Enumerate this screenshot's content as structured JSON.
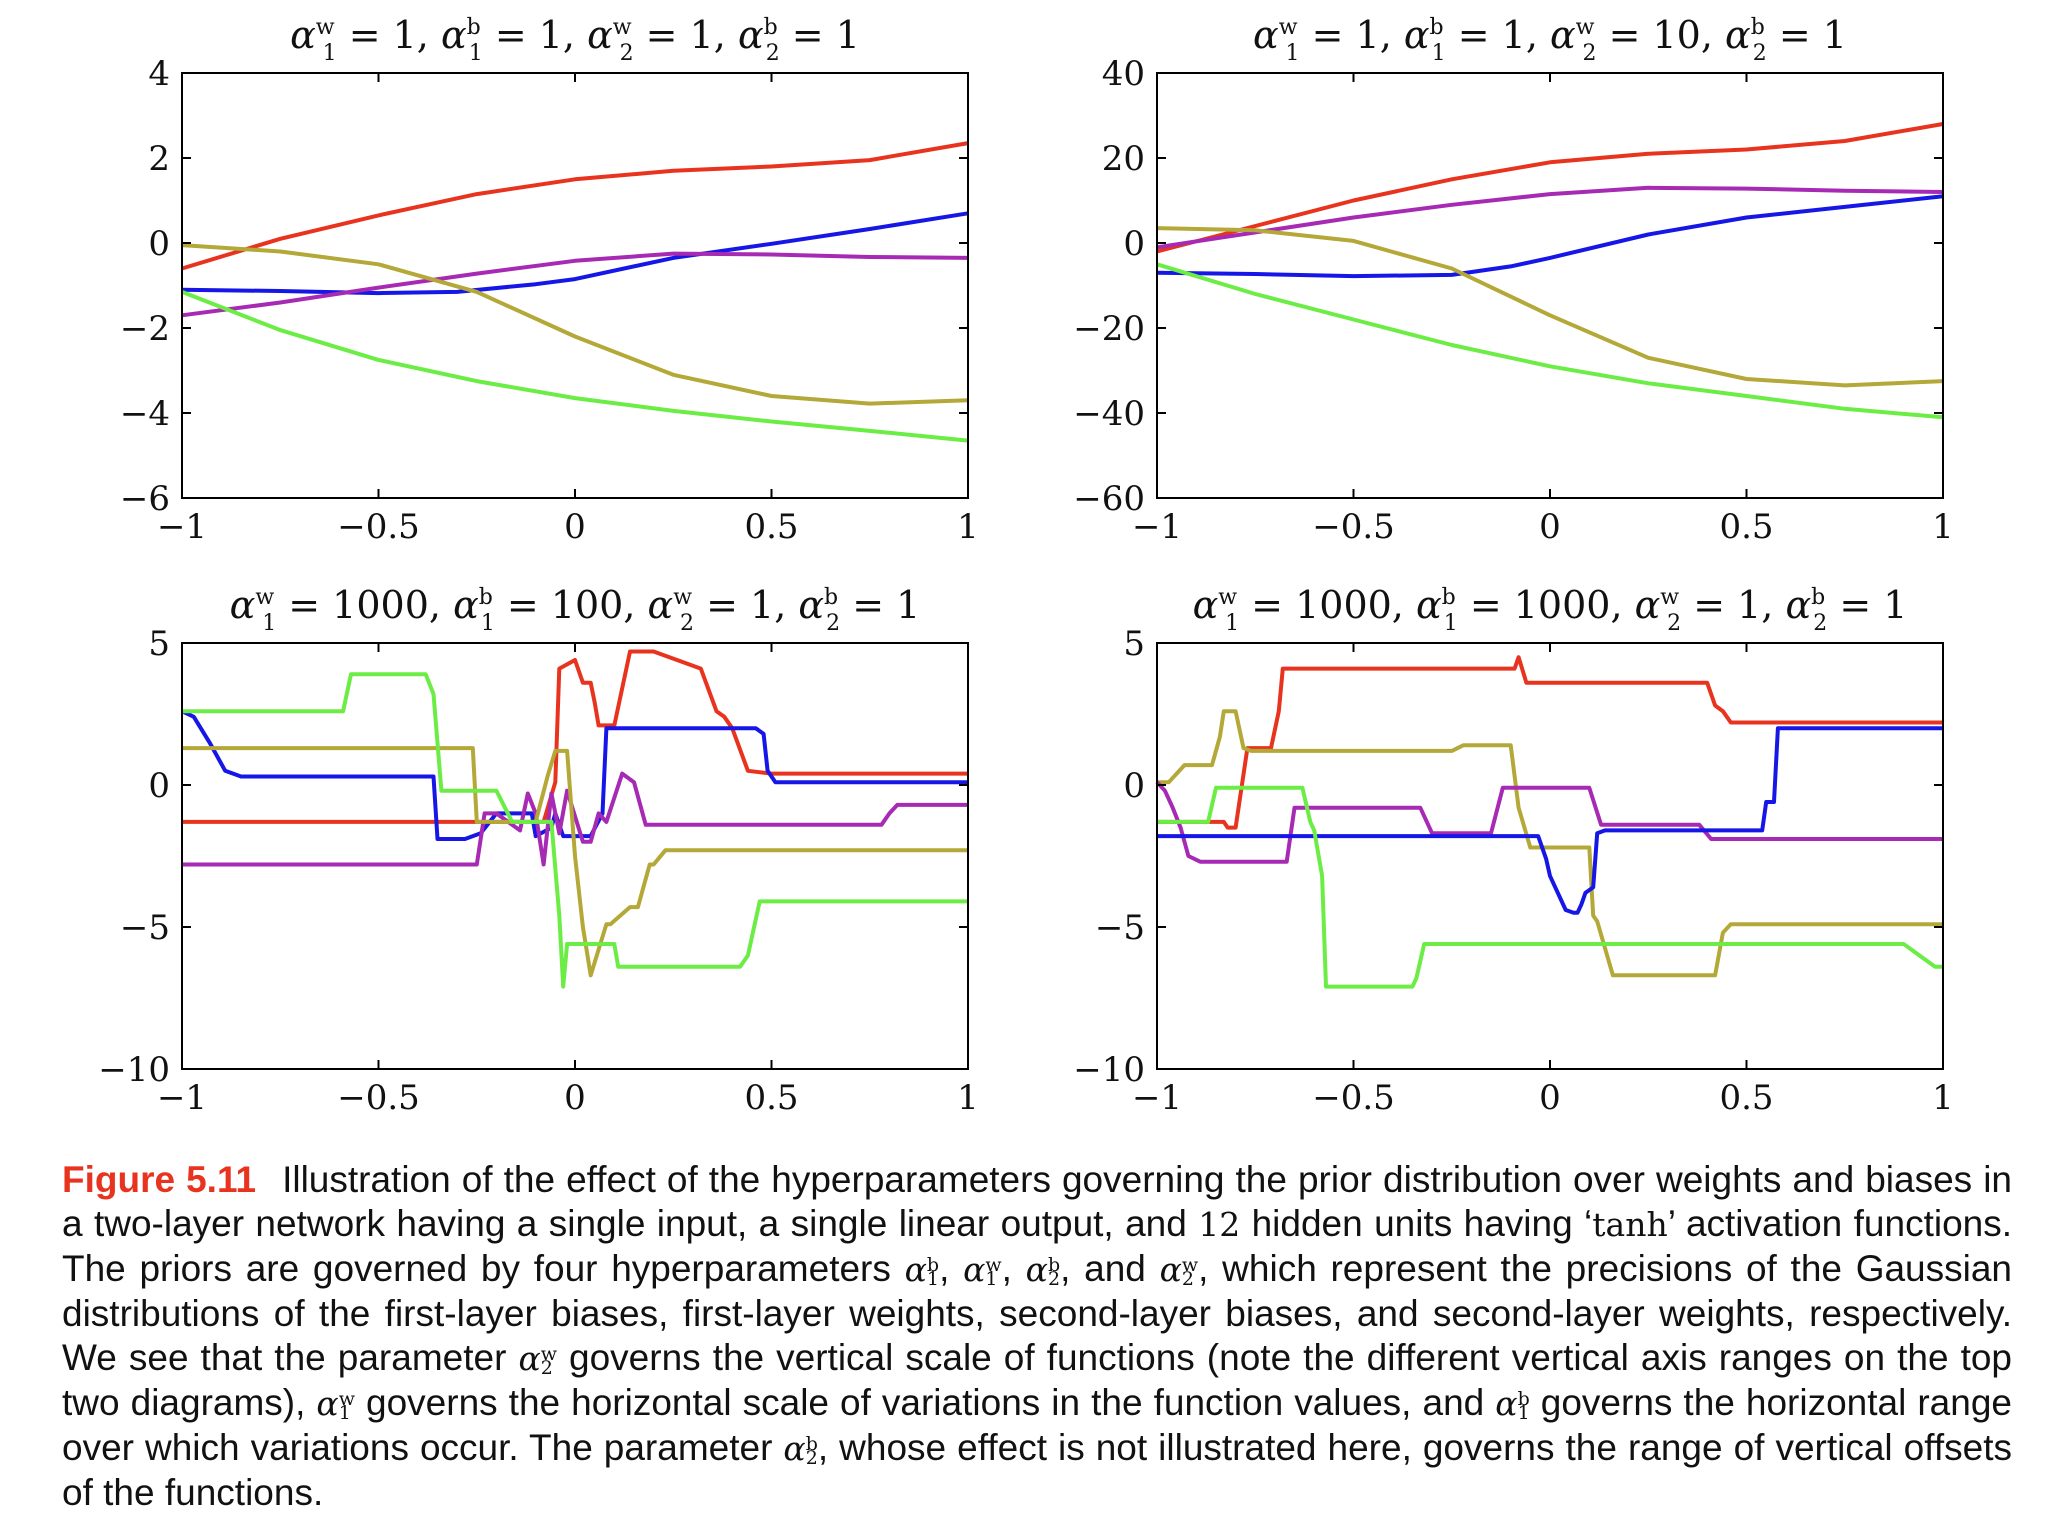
{
  "chart_data": [
    {
      "type": "line",
      "title": "α1w = 1, α1b = 1, α2w = 1, α2b = 1",
      "xlim": [
        -1,
        1
      ],
      "ylim": [
        -6,
        4
      ],
      "xticks": [
        -1,
        -0.5,
        0,
        0.5,
        1
      ],
      "xtick_labels": [
        "−1",
        "−0.5",
        "0",
        "0.5",
        "1"
      ],
      "yticks": [
        -6,
        -4,
        -2,
        0,
        2,
        4
      ],
      "ytick_labels": [
        "−6",
        "−4",
        "−2",
        "0",
        "2",
        "4"
      ],
      "grid": false,
      "series": [
        {
          "color": "#e8331f",
          "x": [
            -1,
            -0.75,
            -0.5,
            -0.25,
            0,
            0.25,
            0.5,
            0.75,
            1
          ],
          "y": [
            -0.6,
            0.1,
            0.65,
            1.15,
            1.5,
            1.7,
            1.8,
            1.95,
            2.35
          ]
        },
        {
          "color": "#1616e6",
          "x": [
            -1,
            -0.75,
            -0.5,
            -0.3,
            -0.1,
            0,
            0.25,
            0.5,
            0.75,
            1
          ],
          "y": [
            -1.1,
            -1.13,
            -1.18,
            -1.15,
            -0.97,
            -0.85,
            -0.35,
            -0.02,
            0.33,
            0.7
          ]
        },
        {
          "color": "#a62ab3",
          "x": [
            -1,
            -0.75,
            -0.5,
            -0.25,
            0,
            0.25,
            0.5,
            0.75,
            1
          ],
          "y": [
            -1.7,
            -1.4,
            -1.05,
            -0.72,
            -0.42,
            -0.25,
            -0.27,
            -0.33,
            -0.35
          ]
        },
        {
          "color": "#b3a838",
          "x": [
            -1,
            -0.75,
            -0.5,
            -0.25,
            0,
            0.25,
            0.5,
            0.75,
            1
          ],
          "y": [
            -0.05,
            -0.2,
            -0.5,
            -1.15,
            -2.2,
            -3.1,
            -3.6,
            -3.78,
            -3.7
          ]
        },
        {
          "color": "#6bed45",
          "x": [
            -1,
            -0.75,
            -0.5,
            -0.25,
            0,
            0.25,
            0.5,
            0.75,
            1
          ],
          "y": [
            -1.15,
            -2.05,
            -2.75,
            -3.25,
            -3.65,
            -3.95,
            -4.2,
            -4.42,
            -4.65
          ]
        }
      ]
    },
    {
      "type": "line",
      "title": "α1w = 1, α1b = 1, α2w = 10, α2b = 1",
      "xlim": [
        -1,
        1
      ],
      "ylim": [
        -60,
        40
      ],
      "xticks": [
        -1,
        -0.5,
        0,
        0.5,
        1
      ],
      "xtick_labels": [
        "−1",
        "−0.5",
        "0",
        "0.5",
        "1"
      ],
      "yticks": [
        -60,
        -40,
        -20,
        0,
        20,
        40
      ],
      "ytick_labels": [
        "−60",
        "−40",
        "−20",
        "0",
        "20",
        "40"
      ],
      "grid": false,
      "series": [
        {
          "color": "#e8331f",
          "x": [
            -1,
            -0.75,
            -0.5,
            -0.25,
            0,
            0.25,
            0.5,
            0.75,
            1
          ],
          "y": [
            -2,
            4,
            10,
            15,
            19,
            21,
            22,
            24,
            28
          ]
        },
        {
          "color": "#a62ab3",
          "x": [
            -1,
            -0.75,
            -0.5,
            -0.25,
            0,
            0.25,
            0.5,
            0.75,
            1
          ],
          "y": [
            -1,
            2.5,
            6,
            9,
            11.5,
            13,
            12.8,
            12.3,
            12
          ]
        },
        {
          "color": "#1616e6",
          "x": [
            -1,
            -0.75,
            -0.5,
            -0.25,
            -0.1,
            0,
            0.25,
            0.5,
            0.75,
            1
          ],
          "y": [
            -7,
            -7.3,
            -7.8,
            -7.5,
            -5.5,
            -3.5,
            2,
            6,
            8.5,
            11
          ]
        },
        {
          "color": "#b3a838",
          "x": [
            -1,
            -0.75,
            -0.5,
            -0.25,
            0,
            0.25,
            0.5,
            0.75,
            1
          ],
          "y": [
            3.5,
            3,
            0.5,
            -6,
            -17,
            -27,
            -32,
            -33.5,
            -32.5
          ]
        },
        {
          "color": "#6bed45",
          "x": [
            -1,
            -0.75,
            -0.5,
            -0.25,
            0,
            0.25,
            0.5,
            0.75,
            1
          ],
          "y": [
            -5,
            -12,
            -18,
            -24,
            -29,
            -33,
            -36,
            -39,
            -41
          ]
        }
      ]
    },
    {
      "type": "line",
      "title": "α1w = 1000, α1b = 100, α2w = 1, α2b = 1",
      "xlim": [
        -1,
        1
      ],
      "ylim": [
        -10,
        5
      ],
      "xticks": [
        -1,
        -0.5,
        0,
        0.5,
        1
      ],
      "xtick_labels": [
        "−1",
        "−0.5",
        "0",
        "0.5",
        "1"
      ],
      "yticks": [
        -10,
        -5,
        0,
        5
      ],
      "ytick_labels": [
        "−10",
        "−5",
        "0",
        "5"
      ],
      "grid": false,
      "series": [
        {
          "color": "#e8331f",
          "x": [
            -1,
            -0.08,
            -0.05,
            -0.04,
            0,
            0.02,
            0.04,
            0.05,
            0.06,
            0.1,
            0.14,
            0.2,
            0.32,
            0.36,
            0.38,
            0.4,
            0.44,
            0.5,
            1
          ],
          "y": [
            -1.3,
            -1.3,
            0.1,
            4.1,
            4.4,
            3.6,
            3.6,
            2.9,
            2.1,
            2.1,
            4.7,
            4.7,
            4.1,
            2.6,
            2.4,
            2.0,
            0.5,
            0.4,
            0.4
          ]
        },
        {
          "color": "#1616e6",
          "x": [
            -1,
            -0.97,
            -0.93,
            -0.89,
            -0.85,
            -0.36,
            -0.35,
            -0.28,
            -0.24,
            -0.2,
            -0.11,
            -0.1,
            -0.06,
            -0.05,
            -0.03,
            0.04,
            0.07,
            0.08,
            0.1,
            0.46,
            0.48,
            0.49,
            0.51,
            1
          ],
          "y": [
            2.6,
            2.4,
            1.5,
            0.5,
            0.3,
            0.3,
            -1.9,
            -1.9,
            -1.7,
            -1.0,
            -1.0,
            -1.8,
            -1.5,
            -1.0,
            -1.8,
            -1.8,
            -1.0,
            2.0,
            2.0,
            2.0,
            1.8,
            0.5,
            0.1,
            0.1
          ]
        },
        {
          "color": "#a62ab3",
          "x": [
            -1,
            -0.25,
            -0.23,
            -0.2,
            -0.14,
            -0.12,
            -0.1,
            -0.08,
            -0.06,
            -0.04,
            -0.02,
            0.02,
            0.04,
            0.06,
            0.08,
            0.12,
            0.15,
            0.18,
            0.78,
            0.8,
            0.82,
            1
          ],
          "y": [
            -2.8,
            -2.8,
            -1.0,
            -1.0,
            -1.6,
            -0.3,
            -1.0,
            -2.8,
            -0.3,
            -1.7,
            -0.2,
            -2.0,
            -2.0,
            -1.0,
            -1.3,
            0.4,
            0.1,
            -1.4,
            -1.4,
            -1.0,
            -0.7,
            -0.7
          ]
        },
        {
          "color": "#b3a838",
          "x": [
            -1,
            -0.26,
            -0.25,
            -0.1,
            -0.07,
            -0.05,
            -0.02,
            0.0,
            0.02,
            0.04,
            0.08,
            0.09,
            0.14,
            0.16,
            0.19,
            0.2,
            0.23,
            1
          ],
          "y": [
            1.3,
            1.3,
            -1.3,
            -1.3,
            0.3,
            1.2,
            1.2,
            -2.5,
            -5.0,
            -6.7,
            -4.9,
            -4.9,
            -4.3,
            -4.3,
            -2.8,
            -2.8,
            -2.3,
            -2.3
          ]
        },
        {
          "color": "#6bed45",
          "x": [
            -1,
            -0.59,
            -0.57,
            -0.38,
            -0.36,
            -0.34,
            -0.2,
            -0.16,
            -0.06,
            -0.04,
            -0.03,
            -0.02,
            0.02,
            0.03,
            0.06,
            0.1,
            0.11,
            0.42,
            0.44,
            0.47,
            1
          ],
          "y": [
            2.6,
            2.6,
            3.9,
            3.9,
            3.2,
            -0.2,
            -0.2,
            -1.3,
            -1.3,
            -4.6,
            -7.1,
            -5.6,
            -5.6,
            -5.6,
            -5.6,
            -5.6,
            -6.4,
            -6.4,
            -6.0,
            -4.1,
            -4.1
          ]
        }
      ]
    },
    {
      "type": "line",
      "title": "α1w = 1000, α1b = 1000, α2w = 1, α2b = 1",
      "xlim": [
        -1,
        1
      ],
      "ylim": [
        -10,
        5
      ],
      "xticks": [
        -1,
        -0.5,
        0,
        0.5,
        1
      ],
      "xtick_labels": [
        "−1",
        "−0.5",
        "0",
        "0.5",
        "1"
      ],
      "yticks": [
        -10,
        -5,
        0,
        5
      ],
      "ytick_labels": [
        "−10",
        "−5",
        "0",
        "5"
      ],
      "grid": false,
      "series": [
        {
          "color": "#e8331f",
          "x": [
            -1,
            -0.83,
            -0.82,
            -0.8,
            -0.77,
            -0.75,
            -0.71,
            -0.69,
            -0.68,
            -0.09,
            -0.08,
            -0.06,
            0.4,
            0.42,
            0.44,
            0.46,
            1
          ],
          "y": [
            -1.3,
            -1.3,
            -1.5,
            -1.5,
            1.3,
            1.3,
            1.3,
            2.6,
            4.1,
            4.1,
            4.5,
            3.6,
            3.6,
            2.8,
            2.6,
            2.2,
            2.2
          ]
        },
        {
          "color": "#b3a838",
          "x": [
            -1,
            -0.97,
            -0.93,
            -0.86,
            -0.84,
            -0.83,
            -0.8,
            -0.78,
            -0.76,
            -0.71,
            -0.56,
            -0.56,
            -0.27,
            -0.25,
            -0.22,
            -0.21,
            -0.2,
            -0.1,
            -0.08,
            -0.05,
            0.1,
            0.11,
            0.12,
            0.16,
            0.42,
            0.44,
            0.46,
            1
          ],
          "y": [
            0.1,
            0.1,
            0.7,
            0.7,
            1.7,
            2.6,
            2.6,
            1.3,
            1.2,
            1.2,
            1.2,
            1.2,
            1.2,
            1.2,
            1.4,
            1.4,
            1.4,
            1.4,
            -0.8,
            -2.2,
            -2.2,
            -4.6,
            -4.8,
            -6.7,
            -6.7,
            -5.2,
            -4.9,
            -4.9
          ]
        },
        {
          "color": "#a62ab3",
          "x": [
            -1,
            -0.98,
            -0.96,
            -0.94,
            -0.92,
            -0.89,
            -0.85,
            -0.8,
            -0.76,
            -0.7,
            -0.67,
            -0.65,
            -0.35,
            -0.33,
            -0.3,
            -0.25,
            -0.2,
            -0.15,
            -0.12,
            -0.08,
            -0.04,
            0.0,
            0.1,
            0.13,
            0.16,
            0.33,
            0.38,
            0.41,
            0.43,
            1
          ],
          "y": [
            0.1,
            -0.2,
            -0.8,
            -1.5,
            -2.5,
            -2.7,
            -2.7,
            -2.7,
            -2.7,
            -2.7,
            -2.7,
            -0.8,
            -0.8,
            -0.8,
            -1.7,
            -1.7,
            -1.7,
            -1.7,
            -0.1,
            -0.1,
            -0.1,
            -0.1,
            -0.1,
            -1.4,
            -1.4,
            -1.4,
            -1.4,
            -1.9,
            -1.9,
            -1.9
          ]
        },
        {
          "color": "#1616e6",
          "x": [
            -1,
            -0.05,
            -0.03,
            -0.01,
            0.0,
            0.04,
            0.06,
            0.07,
            0.08,
            0.09,
            0.11,
            0.12,
            0.14,
            0.54,
            0.55,
            0.57,
            0.58,
            0.6,
            1
          ],
          "y": [
            -1.8,
            -1.8,
            -1.8,
            -2.6,
            -3.2,
            -4.4,
            -4.5,
            -4.5,
            -4.2,
            -3.8,
            -3.6,
            -1.7,
            -1.6,
            -1.6,
            -0.6,
            -0.6,
            2.0,
            2.0,
            2.0
          ]
        },
        {
          "color": "#6bed45",
          "x": [
            -1,
            -0.87,
            -0.85,
            -0.82,
            -0.63,
            -0.61,
            -0.6,
            -0.58,
            -0.57,
            -0.35,
            -0.34,
            -0.32,
            0.9,
            0.92,
            0.95,
            0.98,
            1
          ],
          "y": [
            -1.3,
            -1.3,
            -0.1,
            -0.1,
            -0.1,
            -1.3,
            -1.6,
            -3.2,
            -7.1,
            -7.1,
            -6.8,
            -5.6,
            -5.6,
            -5.8,
            -6.1,
            -6.4,
            -6.4
          ]
        }
      ]
    }
  ],
  "caption": {
    "label": "Figure 5.11",
    "p1": "Illustration of the effect of the hyperparameters governing the prior distribution over weights and biases in a two-layer network having a single input, a single linear output, and ",
    "n_hidden": "12",
    "p2": " hidden units having ‘",
    "tanh": "tanh",
    "p3": "’ activation functions. The priors are governed by four hyperparameters ",
    "p4": ", ",
    "p5": ", ",
    "p6": ", and ",
    "p7": ", which represent the precisions of the Gaussian distributions of the first-layer biases, first-layer weights, second-layer biases, and second-layer weights, respectively. We see that the parameter ",
    "p8": " governs the vertical scale of functions (note the different vertical axis ranges on the top two diagrams), ",
    "p9": " governs the horizontal scale of variations in the function values, and ",
    "p10": " governs the horizontal range over which variations occur. The parameter ",
    "p11": ", whose effect is not illustrated here, governs the range of vertical offsets of the functions."
  },
  "symbols": {
    "alpha": "α",
    "w": "w",
    "b": "b",
    "one": "1",
    "two": "2"
  },
  "panel_titles": [
    {
      "p": [
        "1",
        "1",
        "1",
        "1"
      ]
    },
    {
      "p": [
        "1",
        "1",
        "10",
        "1"
      ]
    },
    {
      "p": [
        "1000",
        "100",
        "1",
        "1"
      ]
    },
    {
      "p": [
        "1000",
        "1000",
        "1",
        "1"
      ]
    }
  ]
}
